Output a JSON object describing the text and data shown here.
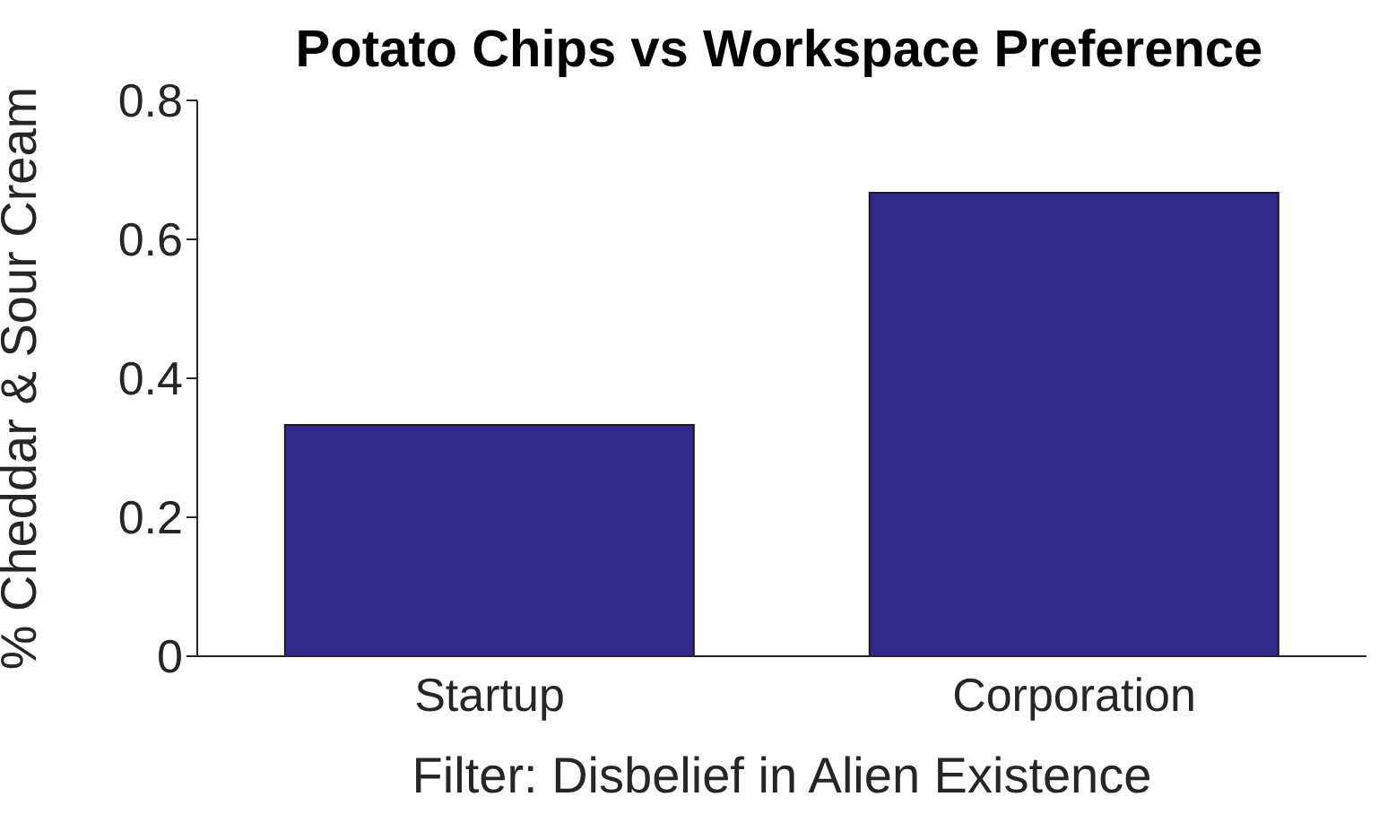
{
  "chart_data": {
    "type": "bar",
    "title": "Potato Chips vs Workspace Preference",
    "xlabel": "Filter: Disbelief in Alien Existence",
    "ylabel": "% Cheddar & Sour Cream",
    "categories": [
      "Startup",
      "Corporation"
    ],
    "values": [
      0.333,
      0.667
    ],
    "color": "#33298a",
    "ylim": [
      0,
      0.8
    ],
    "yticks": [
      0,
      0.2,
      0.4,
      0.6,
      0.8
    ],
    "grid": false
  }
}
